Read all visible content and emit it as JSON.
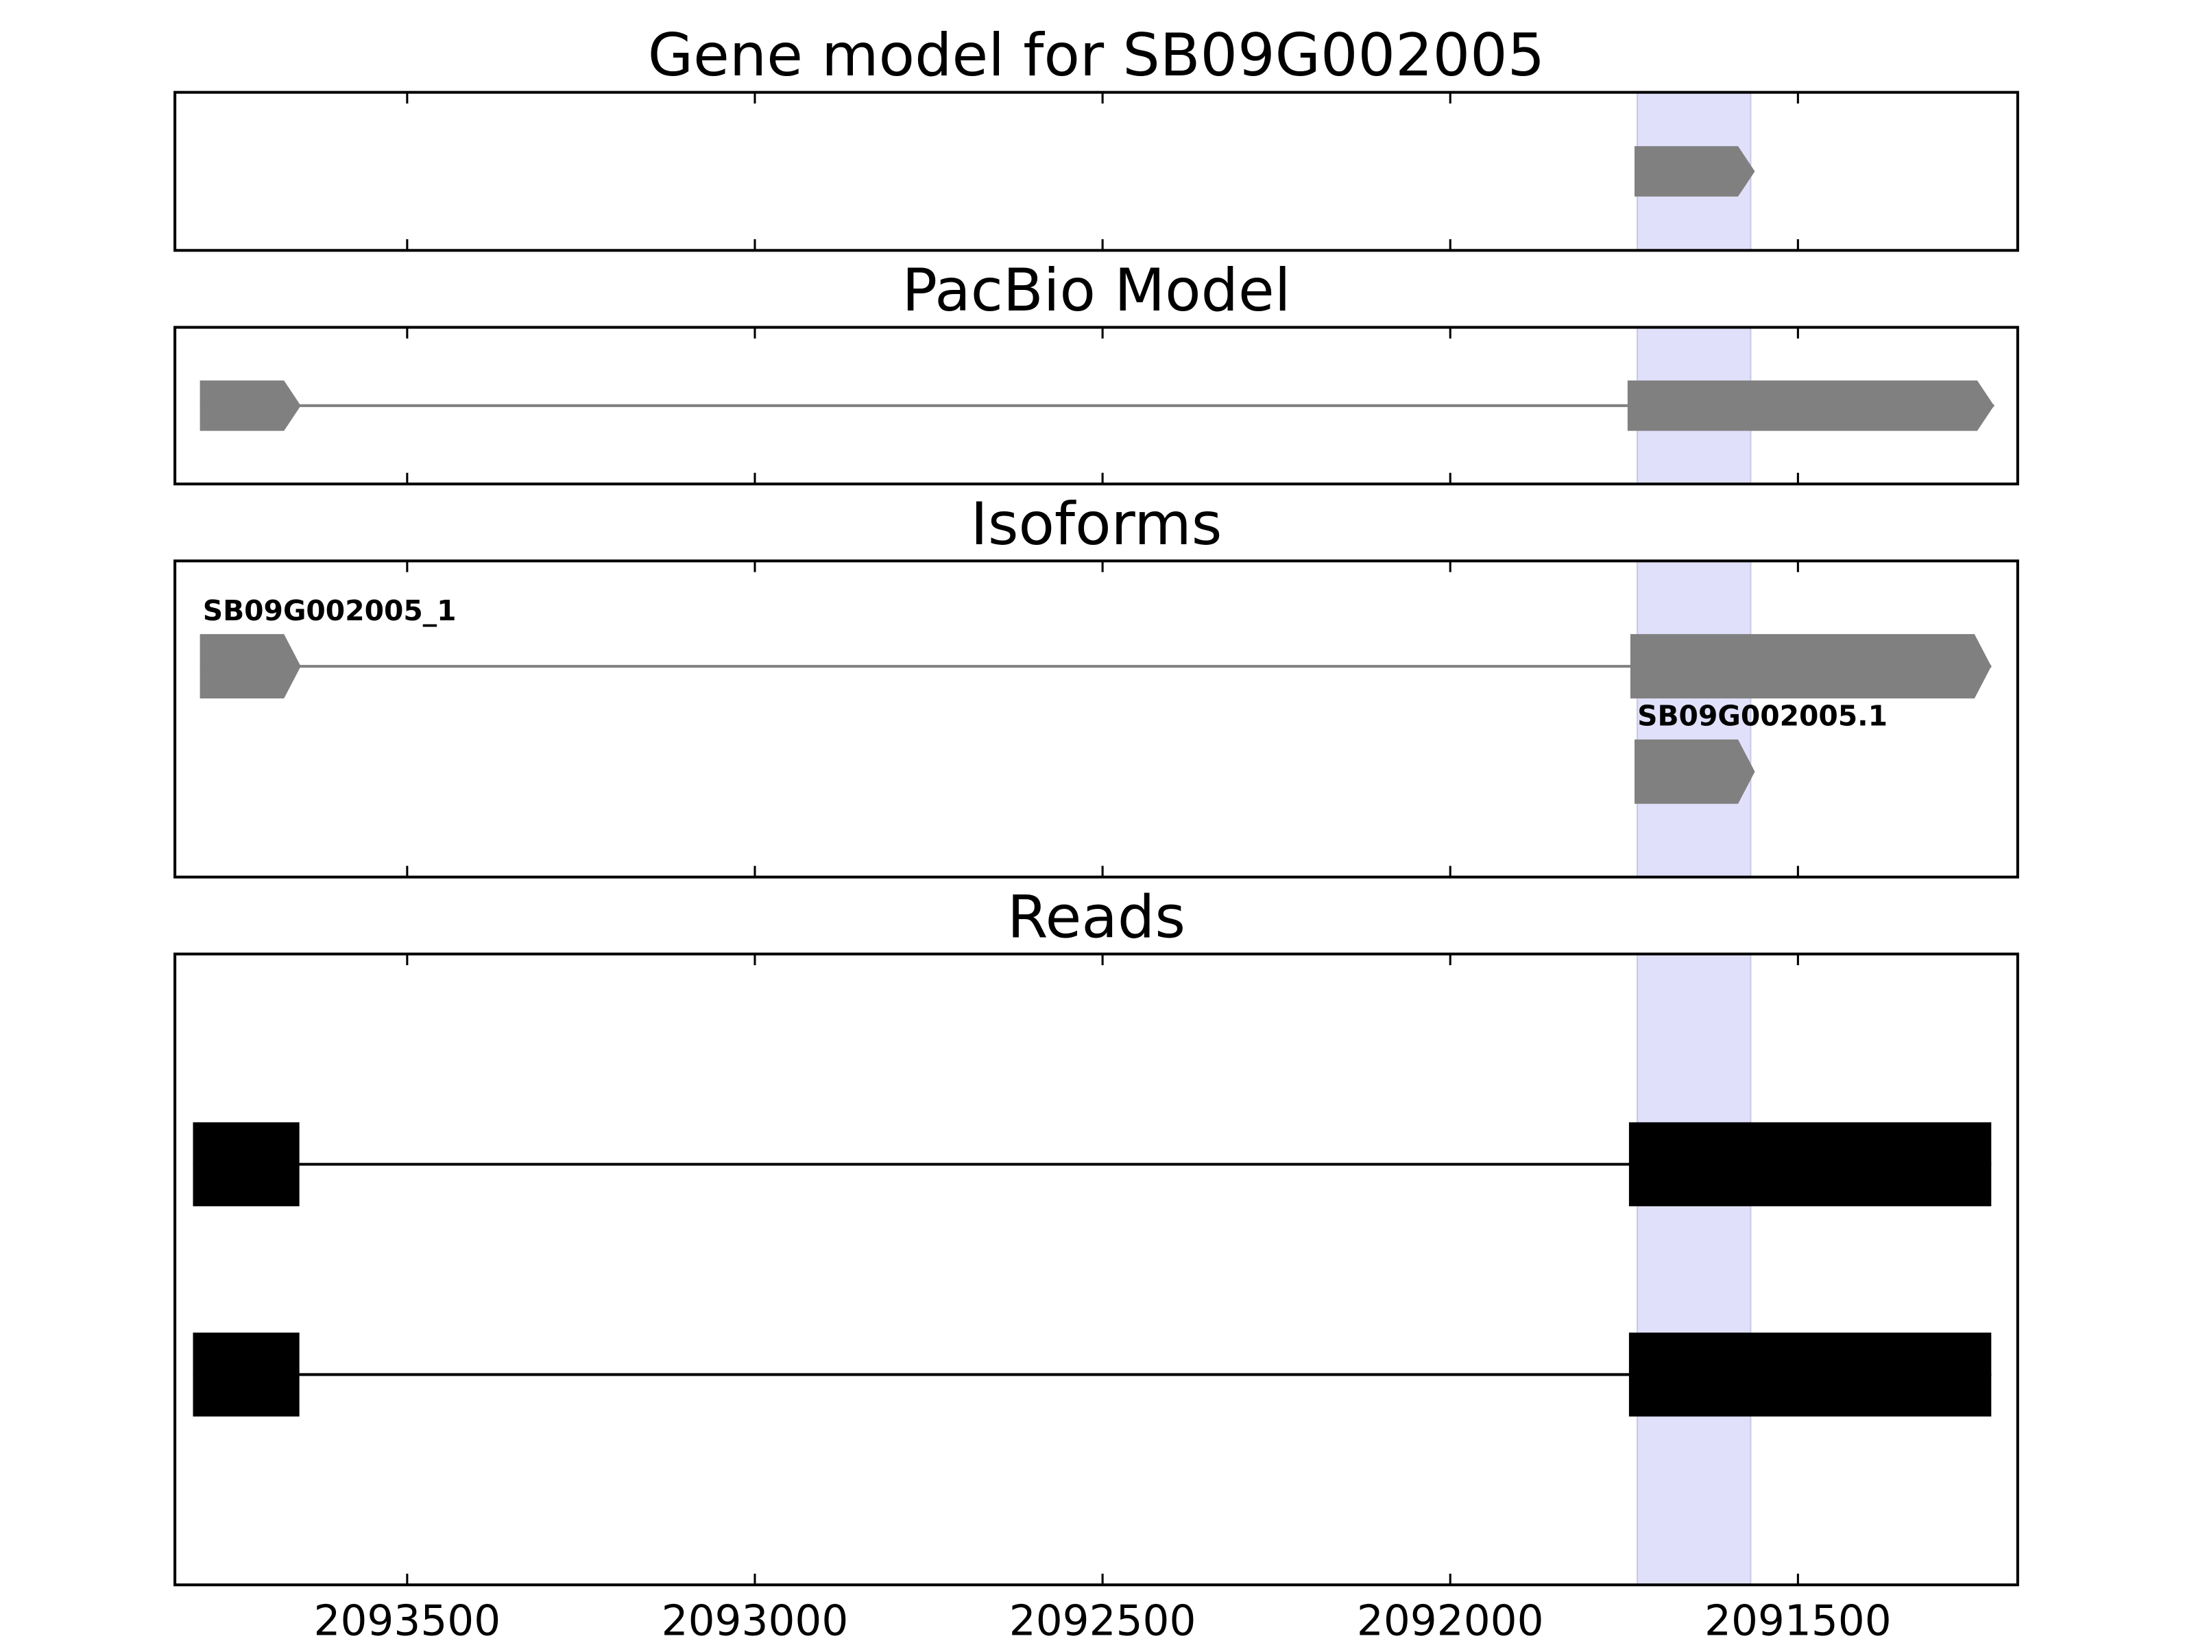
{
  "chart_data": [
    {
      "type": "gene-track",
      "title": "Gene model for SB09G002005",
      "xlim": [
        2093834,
        2091184
      ],
      "xticks": [
        2093500,
        2093000,
        2092500,
        2092000,
        2091500
      ],
      "highlight": [
        2091731,
        2091568
      ],
      "highlight_color": "#e0e0fa",
      "arrow": true,
      "features": [
        {
          "color": "#808080",
          "exons": [
            [
              2091735,
              2091562
            ]
          ]
        }
      ]
    },
    {
      "type": "gene-track",
      "title": "PacBio Model",
      "xlim": [
        2093834,
        2091184
      ],
      "xticks": [
        2093500,
        2093000,
        2092500,
        2092000,
        2091500
      ],
      "highlight": [
        2091731,
        2091568
      ],
      "highlight_color": "#e0e0fa",
      "arrow": true,
      "features": [
        {
          "color": "#808080",
          "exons": [
            [
              2093798,
              2093653
            ],
            [
              2091745,
              2091218
            ]
          ]
        }
      ]
    },
    {
      "type": "gene-track",
      "title": "Isoforms",
      "xlim": [
        2093834,
        2091184
      ],
      "xticks": [
        2093500,
        2093000,
        2092500,
        2092000,
        2091500
      ],
      "highlight": [
        2091731,
        2091568
      ],
      "highlight_color": "#e0e0fa",
      "arrow": true,
      "features": [
        {
          "name": "SB09G002005_1",
          "color": "#808080",
          "exons": [
            [
              2093798,
              2093653
            ],
            [
              2091741,
              2091222
            ]
          ]
        },
        {
          "name": "SB09G002005.1",
          "color": "#808080",
          "exons": [
            [
              2091735,
              2091562
            ]
          ]
        }
      ]
    },
    {
      "type": "gene-track",
      "title": "Reads",
      "xlim": [
        2093834,
        2091184
      ],
      "xticks": [
        2093500,
        2093000,
        2092500,
        2092000,
        2091500
      ],
      "highlight": [
        2091731,
        2091568
      ],
      "highlight_color": "#e0e0fa",
      "arrow": false,
      "features": [
        {
          "color": "#000000",
          "exons": [
            [
              2093808,
              2093655
            ],
            [
              2091743,
              2091222
            ]
          ]
        },
        {
          "color": "#000000",
          "exons": [
            [
              2093808,
              2093655
            ],
            [
              2091743,
              2091222
            ]
          ]
        }
      ]
    }
  ]
}
